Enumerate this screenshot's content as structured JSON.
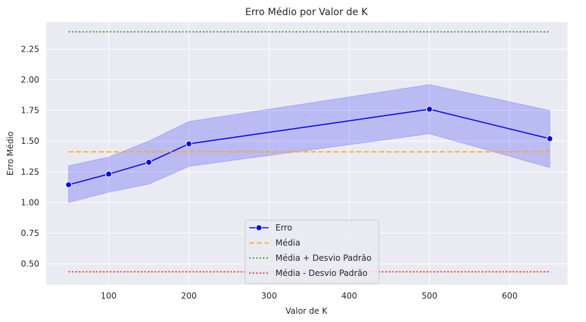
{
  "chart_data": {
    "type": "line",
    "title": "Erro Médio por Valor de K",
    "xlabel": "Valor de K",
    "ylabel": "Erro Médio",
    "xlim": [
      22,
      672
    ],
    "ylim": [
      0.33,
      2.47
    ],
    "xticks": [
      100,
      200,
      300,
      400,
      500,
      600
    ],
    "xtick_labels": [
      "100",
      "200",
      "300",
      "400",
      "500",
      "600"
    ],
    "yticks": [
      0.5,
      0.75,
      1.0,
      1.25,
      1.5,
      1.75,
      2.0,
      2.25
    ],
    "ytick_labels": [
      "0.50",
      "0.75",
      "1.00",
      "1.25",
      "1.50",
      "1.75",
      "2.00",
      "2.25"
    ],
    "grid": true,
    "legend_position": "bottom-center",
    "background": "#eaeaf2",
    "series": [
      {
        "name": "Erro",
        "color": "#0000ff",
        "style": "solid",
        "marker": "circle",
        "x": [
          50,
          100,
          150,
          200,
          500,
          650
        ],
        "y": [
          1.145,
          1.232,
          1.328,
          1.478,
          1.76,
          1.52
        ],
        "band_lower": [
          1.0,
          1.085,
          1.15,
          1.295,
          1.56,
          1.285
        ],
        "band_upper": [
          1.3,
          1.37,
          1.5,
          1.66,
          1.96,
          1.75
        ],
        "band_color": "#0000ff"
      },
      {
        "name": "Média",
        "color": "#ffa500",
        "style": "dashed",
        "x": [
          50,
          650
        ],
        "y": [
          1.413,
          1.413
        ]
      },
      {
        "name": "Média + Desvio Padrão",
        "color": "#008000",
        "style": "dotted",
        "x": [
          50,
          650
        ],
        "y": [
          2.39,
          2.39
        ]
      },
      {
        "name": "Média - Desvio Padrão",
        "color": "#ff0000",
        "style": "dotted",
        "x": [
          50,
          650
        ],
        "y": [
          0.436,
          0.436
        ]
      }
    ]
  }
}
